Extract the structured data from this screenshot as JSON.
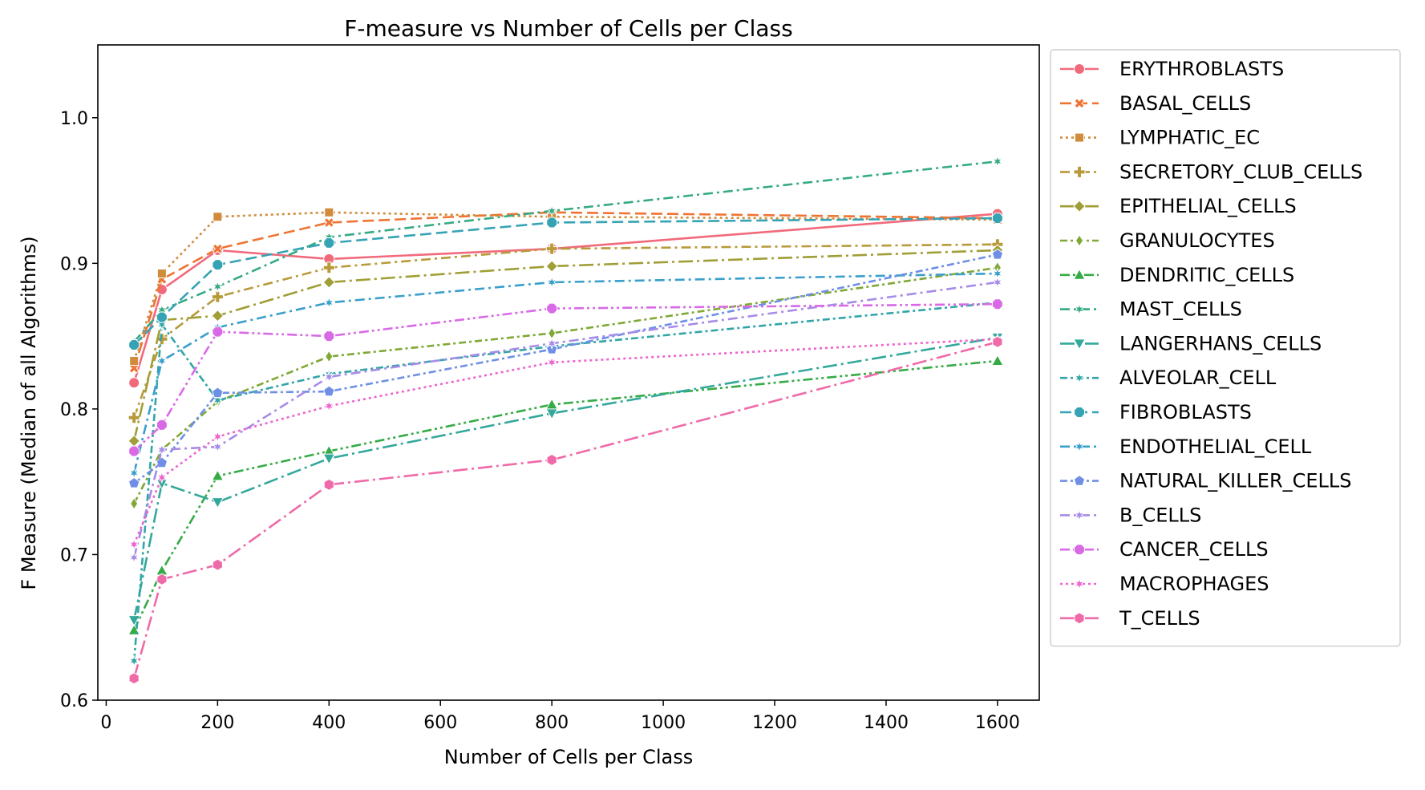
{
  "chart_data": {
    "type": "line",
    "title": "F-measure vs Number of Cells per Class",
    "xlabel": "Number of Cells per Class",
    "ylabel": "F Measure (Median of all Algorithms)",
    "xlim": [
      -15,
      1675
    ],
    "ylim": [
      0.6,
      1.05
    ],
    "xticks": [
      0,
      200,
      400,
      600,
      800,
      1000,
      1200,
      1400,
      1600
    ],
    "yticks": [
      0.6,
      0.7,
      0.8,
      0.9,
      1.0
    ],
    "xtick_labels": [
      "0",
      "200",
      "400",
      "600",
      "800",
      "1000",
      "1200",
      "1400",
      "1600"
    ],
    "ytick_labels": [
      "0.6",
      "0.7",
      "0.8",
      "0.9",
      "1.0"
    ],
    "grid": false,
    "legend_position": "outside-right-top",
    "x": [
      50,
      100,
      200,
      400,
      800,
      1600
    ],
    "series": [
      {
        "name": "ERYTHROBLASTS",
        "color": "#f16a7c",
        "dash": "solid",
        "marker": "circle",
        "values": [
          0.818,
          0.882,
          0.909,
          0.903,
          0.91,
          0.934
        ]
      },
      {
        "name": "BASAL_CELLS",
        "color": "#ef7433",
        "dash": "dashed",
        "marker": "x",
        "values": [
          0.828,
          0.889,
          0.91,
          0.928,
          0.935,
          0.931
        ]
      },
      {
        "name": "LYMPHATIC_EC",
        "color": "#d08c3c",
        "dash": "dotted",
        "marker": "square",
        "values": [
          0.833,
          0.893,
          0.932,
          0.935,
          0.932,
          0.93
        ]
      },
      {
        "name": "SECRETORY_CLUB_CELLS",
        "color": "#b89a3a",
        "dash": "dashdot",
        "marker": "plus",
        "values": [
          0.794,
          0.848,
          0.877,
          0.897,
          0.91,
          0.913
        ]
      },
      {
        "name": "EPITHELIAL_CELLS",
        "color": "#a09e36",
        "dash": "longdashdot",
        "marker": "diamond",
        "values": [
          0.778,
          0.861,
          0.864,
          0.887,
          0.898,
          0.909
        ]
      },
      {
        "name": "GRANULOCYTES",
        "color": "#7fa834",
        "dash": "densedashdot",
        "marker": "thin-diamond",
        "values": [
          0.735,
          0.772,
          0.805,
          0.836,
          0.852,
          0.897
        ]
      },
      {
        "name": "DENDRITIC_CELLS",
        "color": "#35ab46",
        "dash": "dashdotdot",
        "marker": "triangle-up",
        "values": [
          0.648,
          0.689,
          0.754,
          0.771,
          0.803,
          0.833
        ]
      },
      {
        "name": "MAST_CELLS",
        "color": "#35aa83",
        "dash": "dashdot",
        "marker": "star",
        "values": [
          0.846,
          0.868,
          0.884,
          0.918,
          0.936,
          0.97
        ]
      },
      {
        "name": "LANGERHANS_CELLS",
        "color": "#33a89b",
        "dash": "longdashdot",
        "marker": "triangle-down",
        "values": [
          0.655,
          0.749,
          0.736,
          0.766,
          0.797,
          0.849
        ]
      },
      {
        "name": "ALVEOLAR_CELL",
        "color": "#32a5a8",
        "dash": "densedashdot",
        "marker": "star",
        "values": [
          0.627,
          0.858,
          0.806,
          0.824,
          0.843,
          0.873
        ]
      },
      {
        "name": "FIBROBLASTS",
        "color": "#36a3b4",
        "dash": "dashed",
        "marker": "octagon",
        "values": [
          0.844,
          0.863,
          0.899,
          0.914,
          0.928,
          0.931
        ]
      },
      {
        "name": "ENDOTHELIAL_CELL",
        "color": "#3a9fcb",
        "dash": "dashdot",
        "marker": "star",
        "values": [
          0.756,
          0.833,
          0.856,
          0.873,
          0.887,
          0.893
        ]
      },
      {
        "name": "NATURAL_KILLER_CELLS",
        "color": "#6f8fe6",
        "dash": "densedashdot",
        "marker": "pentagon",
        "values": [
          0.749,
          0.763,
          0.811,
          0.812,
          0.841,
          0.906
        ]
      },
      {
        "name": "B_CELLS",
        "color": "#a78be8",
        "dash": "dashdot",
        "marker": "star",
        "values": [
          0.698,
          0.772,
          0.774,
          0.822,
          0.845,
          0.887
        ]
      },
      {
        "name": "CANCER_CELLS",
        "color": "#d96ae6",
        "dash": "dashdotdot",
        "marker": "octagon",
        "values": [
          0.771,
          0.789,
          0.853,
          0.85,
          0.869,
          0.872
        ]
      },
      {
        "name": "MACROPHAGES",
        "color": "#ec64cf",
        "dash": "dotted",
        "marker": "star",
        "values": [
          0.707,
          0.753,
          0.781,
          0.802,
          0.832,
          0.848
        ]
      },
      {
        "name": "T_CELLS",
        "color": "#ef6aa8",
        "dash": "longdashdot",
        "marker": "hexagon",
        "values": [
          0.615,
          0.683,
          0.693,
          0.748,
          0.765,
          0.846
        ]
      }
    ]
  }
}
